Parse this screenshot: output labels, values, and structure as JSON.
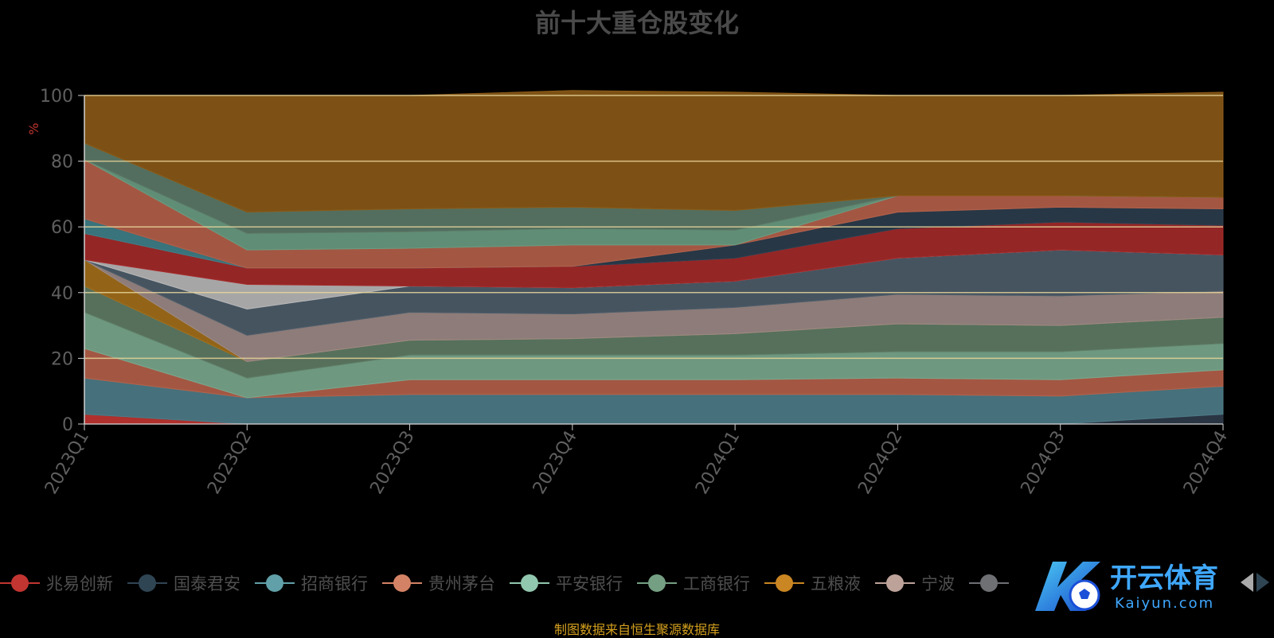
{
  "chart_data": {
    "type": "area",
    "title": "前十大重仓股变化",
    "ylabel": "%",
    "ylim": [
      0,
      100
    ],
    "yticks": [
      0,
      20,
      40,
      60,
      80,
      100
    ],
    "categories": [
      "2023Q1",
      "2023Q2",
      "2023Q3",
      "2023Q4",
      "2024Q1",
      "2024Q2",
      "2024Q3",
      "2024Q4"
    ],
    "stacked": true,
    "stack_order_note": "",
    "series": [
      {
        "name": "兆易创新",
        "color": "#c23531",
        "values": [
          3,
          0,
          0,
          0,
          0,
          0,
          0,
          0
        ]
      },
      {
        "name": "",
        "color": "#2f3b4a",
        "values": [
          0,
          0,
          0,
          0,
          0,
          0,
          0,
          3
        ]
      },
      {
        "name": "",
        "color": "#4e7c88",
        "values": [
          11,
          8,
          9,
          9,
          9,
          9,
          8.5,
          8.5
        ]
      },
      {
        "name": "",
        "color": "#b5614a",
        "values": [
          9,
          0,
          4.5,
          4.5,
          4.5,
          5,
          5,
          5
        ]
      },
      {
        "name": "",
        "color": "#7aa88e",
        "values": [
          11,
          6,
          7.5,
          7.5,
          7.5,
          8,
          8.5,
          8
        ]
      },
      {
        "name": "",
        "color": "#5f7c66",
        "values": [
          8,
          5,
          4.5,
          5,
          6.5,
          8.5,
          8,
          8
        ]
      },
      {
        "name": "",
        "color": "#a36f1b",
        "values": [
          8,
          0,
          0,
          0,
          0,
          0,
          0,
          0
        ]
      },
      {
        "name": "",
        "color": "#9c8a86",
        "values": [
          0,
          8,
          8.5,
          7.5,
          8,
          9,
          9,
          8
        ]
      },
      {
        "name": "",
        "color": "#4e5d6a",
        "values": [
          0,
          8,
          8,
          8,
          8,
          11,
          14,
          11
        ]
      },
      {
        "name": "",
        "color": "#b8b8b8",
        "values": [
          0,
          7.5,
          0,
          0,
          0,
          0,
          0,
          0
        ]
      },
      {
        "name": "",
        "color": "#a52a2a",
        "values": [
          8,
          5,
          5.5,
          6.5,
          7,
          9,
          8.5,
          9
        ]
      },
      {
        "name": "",
        "color": "#3f7f88",
        "values": [
          4.5,
          0,
          0,
          0,
          0,
          0,
          0,
          0
        ]
      },
      {
        "name": "",
        "color": "#2b3d4e",
        "values": [
          0,
          0,
          0,
          0,
          4,
          5,
          4.5,
          5
        ]
      },
      {
        "name": "",
        "color": "#b5614a",
        "values": [
          18,
          5.5,
          6,
          6.5,
          0,
          5,
          3.5,
          3.5
        ]
      },
      {
        "name": "",
        "color": "#6a9c82",
        "values": [
          0,
          5,
          5,
          5,
          4.5,
          0,
          0,
          0
        ]
      },
      {
        "name": "",
        "color": "#5c7a68",
        "values": [
          5,
          6.5,
          7,
          6.5,
          6,
          0,
          0,
          0
        ]
      },
      {
        "name": "",
        "color": "#8b5a17",
        "values": [
          14.5,
          35.5,
          34.5,
          35.5,
          36,
          30.5,
          30.5,
          32
        ]
      }
    ]
  },
  "legend": {
    "items": [
      {
        "name": "兆易创新",
        "color": "#c23531"
      },
      {
        "name": "国泰君安",
        "color": "#2f4554"
      },
      {
        "name": "招商银行",
        "color": "#61a0a8"
      },
      {
        "name": "贵州茅台",
        "color": "#d48265"
      },
      {
        "name": "平安银行",
        "color": "#91c7ae"
      },
      {
        "name": "工商银行",
        "color": "#749f83"
      },
      {
        "name": "五粮液",
        "color": "#ca8622"
      },
      {
        "name": "宁波",
        "color": "#bda29a"
      },
      {
        "name": "",
        "color": "#6e7074"
      }
    ]
  },
  "source_note": "制图数据来自恒生聚源数据库",
  "watermark": {
    "brand": "开云体育",
    "sub": "Kaiyun.com"
  },
  "colors": {
    "grid": "#e8d59a",
    "axis": "#cfcfcf",
    "title": "#4a4a4a",
    "ylabel": "#c23531",
    "note": "#d4a01e"
  }
}
